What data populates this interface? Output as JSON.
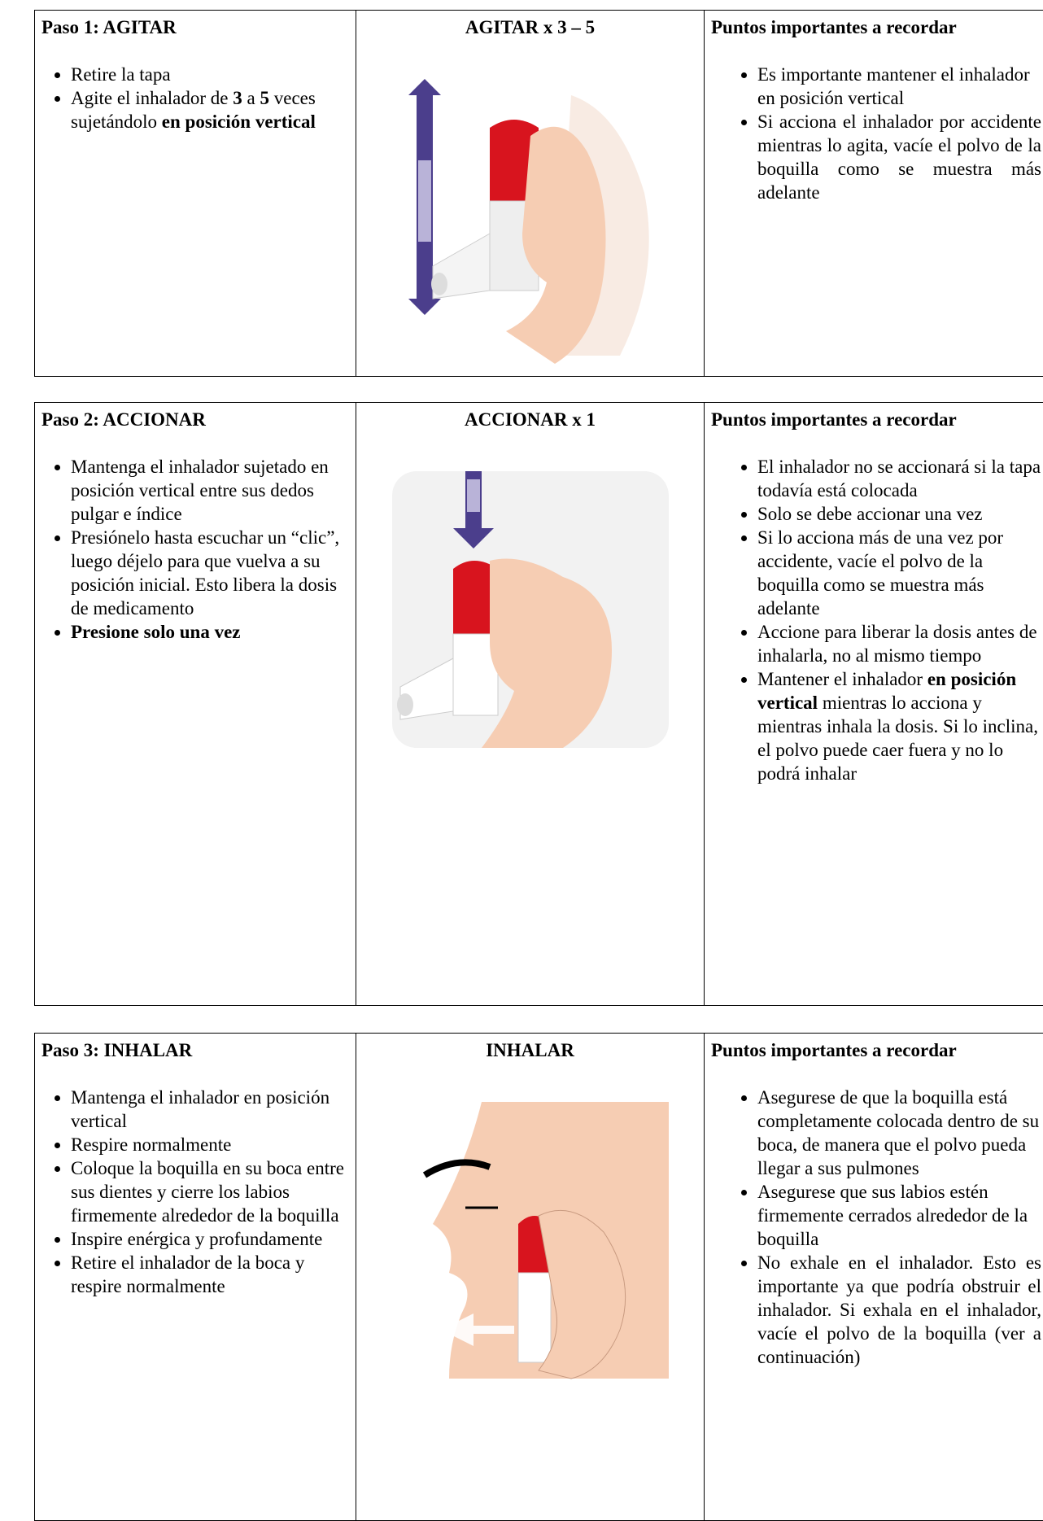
{
  "steps": [
    {
      "heading": "Paso 1: AGITAR",
      "image_caption": "AGITAR x 3 – 5",
      "notes_heading": "Puntos importantes a recordar",
      "instructions": [
        [
          {
            "text": "Retire la tapa"
          }
        ],
        [
          {
            "text": "Agite el inhalador de "
          },
          {
            "text": "3",
            "bold": true
          },
          {
            "text": " a "
          },
          {
            "text": "5",
            "bold": true
          },
          {
            "text": " veces sujetándolo "
          },
          {
            "text": "en posición vertical",
            "bold": true
          }
        ]
      ],
      "notes": [
        {
          "runs": [
            {
              "text": "Es importante mantener el inhalador en posición vertical"
            }
          ]
        },
        {
          "runs": [
            {
              "text": "Si acciona el inhalador por accidente mientras lo agita, vacíe el polvo de la boquilla como se muestra más adelante"
            }
          ],
          "justify": true
        }
      ]
    },
    {
      "heading": "Paso 2: ACCIONAR",
      "image_caption": "ACCIONAR x 1",
      "notes_heading": "Puntos importantes a recordar",
      "instructions": [
        [
          {
            "text": "Mantenga el inhalador sujetado en posición vertical entre sus dedos pulgar e índice"
          }
        ],
        [
          {
            "text": "Presiónelo hasta escuchar un “clic”, luego déjelo para que vuelva a su posición inicial. Esto libera la dosis de medicamento"
          }
        ],
        [
          {
            "text": "Presione solo una vez",
            "bold": true
          }
        ]
      ],
      "notes": [
        {
          "runs": [
            {
              "text": "El inhalador no se accionará si la tapa todavía está colocada"
            }
          ]
        },
        {
          "runs": [
            {
              "text": "Solo se debe accionar una vez"
            }
          ]
        },
        {
          "runs": [
            {
              "text": "Si lo acciona más de una vez por accidente, vacíe el polvo de la boquilla como se muestra más adelante"
            }
          ]
        },
        {
          "runs": [
            {
              "text": "Accione para liberar la dosis antes de inhalarla, no al mismo tiempo"
            }
          ]
        },
        {
          "runs": [
            {
              "text": "Mantener el inhalador "
            },
            {
              "text": "en posición vertical",
              "bold": true
            },
            {
              "text": " mientras lo acciona y mientras inhala la dosis. Si lo inclina, el polvo puede caer fuera y no lo podrá inhalar"
            }
          ]
        }
      ]
    },
    {
      "heading": "Paso 3: INHALAR",
      "image_caption": "INHALAR",
      "notes_heading": "Puntos importantes a recordar",
      "instructions": [
        [
          {
            "text": "Mantenga el inhalador en posición vertical"
          }
        ],
        [
          {
            "text": "Respire normalmente"
          }
        ],
        [
          {
            "text": "Coloque la boquilla en su boca entre sus dientes y cierre los labios firmemente alrededor de la boquilla"
          }
        ],
        [
          {
            "text": "Inspire enérgica y profundamente"
          }
        ],
        [
          {
            "text": "Retire el inhalador de la boca y respire normalmente"
          }
        ]
      ],
      "notes": [
        {
          "runs": [
            {
              "text": "Asegurese de que la boquilla está completamente colocada dentro de su boca, de manera que el polvo pueda llegar a sus pulmones"
            }
          ]
        },
        {
          "runs": [
            {
              "text": "Asegurese que sus labios estén firmemente cerrados alrededor de la boquilla"
            }
          ]
        },
        {
          "runs": [
            {
              "text": "No exhale en el inhalador. Esto es importante ya que podría obstruir el inhalador. Si exhala en el inhalador, vacíe el polvo de la boquilla (ver a continuación)"
            }
          ],
          "justify": true
        }
      ]
    }
  ]
}
